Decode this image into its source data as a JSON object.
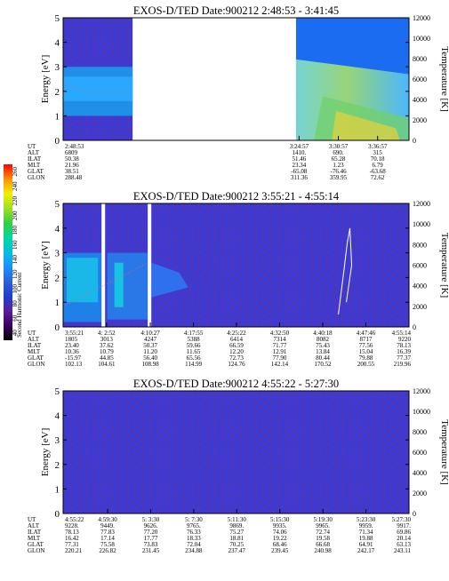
{
  "colors": {
    "background_blue": "#3a3ad6",
    "noise_red": "#b2263b",
    "data_gap": "#ffffff",
    "trace": "#e06a6a"
  },
  "colorbar": {
    "label": "Second Harmonic Current",
    "ticks": [
      "40",
      "60",
      "80",
      "100",
      "120",
      "140",
      "160",
      "180",
      "200",
      "220",
      "240",
      "260"
    ],
    "colors": [
      "#000000",
      "#3a0060",
      "#5a1f9a",
      "#2040d0",
      "#2f5fd8",
      "#1e90ff",
      "#00c0e0",
      "#00d6a0",
      "#30d040",
      "#a0e020",
      "#f0f000",
      "#ff9000",
      "#ff0000"
    ]
  },
  "chart_data": [
    {
      "type": "heatmap",
      "title": "EXOS-D/TED   Date:900212   2:48:53 - 3:41:45",
      "ylabel_left": "Energy [eV]",
      "ylabel_right": "Temperature [K]",
      "ylim_left": [
        0,
        5
      ],
      "ylim_right": [
        0,
        12000
      ],
      "yticks_left": [
        "0",
        "1",
        "2",
        "3",
        "4",
        "5"
      ],
      "yticks_right": [
        "0",
        "2000",
        "4000",
        "6000",
        "8000",
        "10000",
        "12000"
      ],
      "row_names": [
        "UT",
        "ALT",
        "ILAT",
        "MLT",
        "GLAT",
        "GLON"
      ],
      "columns": [
        {
          "UT": "2:48:53",
          "ALT": "6809",
          "ILAT": "50.38",
          "MLT": "21.96",
          "GLAT": "38.51",
          "GLON": "288.48"
        },
        {
          "UT": "3:24:57",
          "ALT": "1410.",
          "ILAT": "51.46",
          "MLT": "23.34",
          "GLAT": "-65.08",
          "GLON": "311.36"
        },
        {
          "UT": "3:30:57",
          "ALT": "690.",
          "ILAT": "65.28",
          "MLT": "1.23",
          "GLAT": "-76.46",
          "GLON": "359.95"
        },
        {
          "UT": "3:36:57",
          "ALT": "315",
          "ILAT": "70.18",
          "MLT": "6.79",
          "GLAT": "-63.68",
          "GLON": "72.62"
        }
      ],
      "data_regions": [
        {
          "from": "2:48:53",
          "to": "2:59:30",
          "description": "low-energy band near 1-3 eV"
        },
        {
          "from": "3:24:30",
          "to": "3:41:45",
          "description": "energetic flux, high at start decreasing toward 2-3 eV"
        }
      ]
    },
    {
      "type": "heatmap",
      "title": "EXOS-D/TED   Date:900212   3:55:21 - 4:55:14",
      "ylabel_left": "Energy [eV]",
      "ylabel_right": "Temperature [K]",
      "ylim_left": [
        0,
        5
      ],
      "ylim_right": [
        0,
        12000
      ],
      "yticks_left": [
        "0",
        "1",
        "2",
        "3",
        "4",
        "5"
      ],
      "yticks_right": [
        "0",
        "2000",
        "4000",
        "6000",
        "8000",
        "10000",
        "12000"
      ],
      "row_names": [
        "UT",
        "ALT",
        "ILAT",
        "MLT",
        "GLAT",
        "GLON"
      ],
      "columns": [
        {
          "UT": "3:55:21",
          "ALT": "1805",
          "ILAT": "23.40",
          "MLT": "10.36",
          "GLAT": "-15.97",
          "GLON": "102.13"
        },
        {
          "UT": "4: 2:52",
          "ALT": "3013",
          "ILAT": "37.62",
          "MLT": "10.79",
          "GLAT": "44.85",
          "GLON": "104.61"
        },
        {
          "UT": "4:10:27",
          "ALT": "4247",
          "ILAT": "50.37",
          "MLT": "11.20",
          "GLAT": "56.40",
          "GLON": "108.98"
        },
        {
          "UT": "4:17:55",
          "ALT": "5388",
          "ILAT": "59.66",
          "MLT": "11.65",
          "GLAT": "65.56",
          "GLON": "114.99"
        },
        {
          "UT": "4:25:22",
          "ALT": "6414",
          "ILAT": "66.59",
          "MLT": "12.20",
          "GLAT": "72.73",
          "GLON": "124.76"
        },
        {
          "UT": "4:32:50",
          "ALT": "7314",
          "ILAT": "71.77",
          "MLT": "12.91",
          "GLAT": "77.90",
          "GLON": "142.14"
        },
        {
          "UT": "4:40:18",
          "ALT": "8082",
          "ILAT": "75.43",
          "MLT": "13.84",
          "GLAT": "80.44",
          "GLON": "170.52"
        },
        {
          "UT": "4:47:46",
          "ALT": "8717",
          "ILAT": "77.56",
          "MLT": "15.04",
          "GLAT": "79.88",
          "GLON": "200.55"
        },
        {
          "UT": "4:55:14",
          "ALT": "9220",
          "ILAT": "78.13",
          "MLT": "16.39",
          "GLAT": "77.37",
          "GLON": "219.96"
        }
      ],
      "data_regions": [
        {
          "from": "3:55:21",
          "to": "4:02:00",
          "description": "ion flux 1-3 eV"
        },
        {
          "from": "4:03:00",
          "to": "4:10:00",
          "description": "ion flux 1-3 eV, rising trace"
        },
        {
          "from": "4:10:40",
          "to": "4:17:00",
          "description": "weak flux near 1.5-2.5 eV"
        },
        {
          "from": "4:42:30",
          "to": "4:45:30",
          "description": "spiky feature up to 4 eV"
        }
      ]
    },
    {
      "type": "heatmap",
      "title": "EXOS-D/TED   Date:900212   4:55:22 - 5:27:30",
      "ylabel_left": "Energy [eV]",
      "ylabel_right": "Temperature [K]",
      "ylim_left": [
        0,
        5
      ],
      "ylim_right": [
        0,
        12000
      ],
      "yticks_left": [
        "0",
        "1",
        "2",
        "3",
        "4",
        "5"
      ],
      "yticks_right": [
        "0",
        "2000",
        "4000",
        "6000",
        "8000",
        "10000",
        "12000"
      ],
      "row_names": [
        "UT",
        "ALT",
        "ILAT",
        "MLT",
        "GLAT",
        "GLON"
      ],
      "columns": [
        {
          "UT": "4:55:22",
          "ALT": "9228.",
          "ILAT": "78.13",
          "MLT": "16.42",
          "GLAT": "77.31",
          "GLON": "220.21"
        },
        {
          "UT": "4:59:30",
          "ALT": "9449.",
          "ILAT": "77.83",
          "MLT": "17.14",
          "GLAT": "75.58",
          "GLON": "226.82"
        },
        {
          "UT": "5: 3:30",
          "ALT": "9626.",
          "ILAT": "77.20",
          "MLT": "17.77",
          "GLAT": "73.83",
          "GLON": "231.45"
        },
        {
          "UT": "5: 7:30",
          "ALT": "9765.",
          "ILAT": "76.33",
          "MLT": "18.33",
          "GLAT": "72.04",
          "GLON": "234.88"
        },
        {
          "UT": "5:11:30",
          "ALT": "9869.",
          "ILAT": "75.27",
          "MLT": "18.81",
          "GLAT": "70.25",
          "GLON": "237.47"
        },
        {
          "UT": "5:15:30",
          "ALT": "9935.",
          "ILAT": "74.06",
          "MLT": "19.22",
          "GLAT": "68.46",
          "GLON": "239.45"
        },
        {
          "UT": "5:19:30",
          "ALT": "9965.",
          "ILAT": "72.74",
          "MLT": "19.58",
          "GLAT": "66.68",
          "GLON": "240.98"
        },
        {
          "UT": "5:23:30",
          "ALT": "9959.",
          "ILAT": "71.34",
          "MLT": "19.88",
          "GLAT": "64.91",
          "GLON": "242.17"
        },
        {
          "UT": "5:27:30",
          "ALT": "9917.",
          "ILAT": "69.86",
          "MLT": "20.14",
          "GLAT": "63.13",
          "GLON": "243.11"
        }
      ],
      "data_regions": []
    }
  ]
}
